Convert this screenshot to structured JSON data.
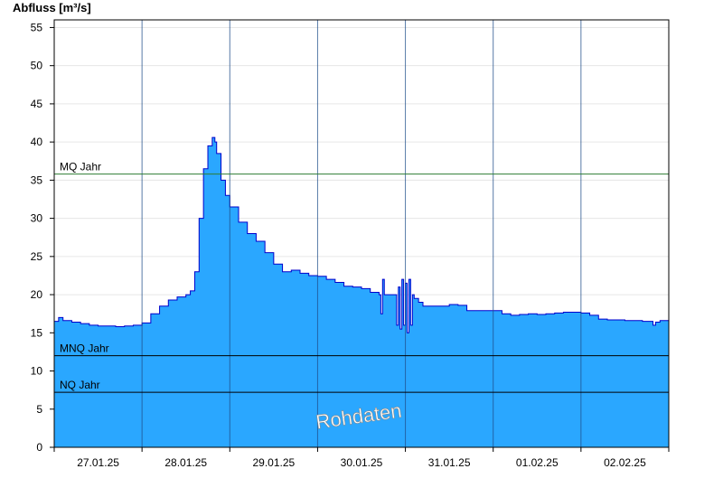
{
  "chart_data": {
    "type": "area",
    "ylabel": "Abfluss [m³/s]",
    "ylim": [
      0,
      56
    ],
    "yticks": [
      0,
      5,
      10,
      15,
      20,
      25,
      30,
      35,
      40,
      45,
      50,
      55
    ],
    "xlim": [
      0,
      7
    ],
    "x_unit": "days",
    "x_tick_labels": [
      "27.01.25",
      "28.01.25",
      "29.01.25",
      "30.01.25",
      "31.01.25",
      "01.02.25",
      "02.02.25"
    ],
    "watermark": "Rohdaten",
    "reference_lines": [
      {
        "label": "MQ Jahr",
        "value": 35.8,
        "color": "#2e7d32"
      },
      {
        "label": "MNQ Jahr",
        "value": 12.0,
        "color": "#000000"
      },
      {
        "label": "NQ Jahr",
        "value": 7.2,
        "color": "#000000"
      }
    ],
    "fill_color": "#2aa7ff",
    "line_color": "#0000cc",
    "series": [
      {
        "x": [
          0.0,
          0.05,
          0.1,
          0.2,
          0.3,
          0.4,
          0.5,
          0.6,
          0.7,
          0.8,
          0.9,
          1.0,
          1.1,
          1.2,
          1.3,
          1.4,
          1.45,
          1.5,
          1.55,
          1.6,
          1.65,
          1.7,
          1.75,
          1.8,
          1.83,
          1.85,
          1.9,
          1.95,
          2.0,
          2.1,
          2.2,
          2.3,
          2.4,
          2.5,
          2.6,
          2.7,
          2.8,
          2.9,
          3.0,
          3.1,
          3.2,
          3.3,
          3.4,
          3.5,
          3.6,
          3.7,
          3.72,
          3.74,
          3.76,
          3.8,
          3.88,
          3.9,
          3.92,
          3.94,
          3.96,
          3.98,
          4.0,
          4.02,
          4.04,
          4.06,
          4.08,
          4.1,
          4.15,
          4.2,
          4.3,
          4.4,
          4.5,
          4.6,
          4.7,
          4.8,
          4.9,
          5.0,
          5.1,
          5.2,
          5.3,
          5.4,
          5.5,
          5.6,
          5.7,
          5.8,
          5.9,
          6.0,
          6.1,
          6.2,
          6.3,
          6.4,
          6.5,
          6.6,
          6.7,
          6.8,
          6.82,
          6.85,
          6.9,
          7.0
        ],
        "y": [
          16.5,
          17.0,
          16.6,
          16.4,
          16.2,
          16.0,
          15.9,
          15.9,
          15.8,
          15.9,
          16.0,
          16.3,
          17.5,
          18.5,
          19.3,
          19.7,
          19.7,
          20.0,
          20.5,
          23.0,
          30.0,
          36.5,
          39.5,
          40.6,
          40.0,
          38.5,
          35.0,
          33.0,
          31.5,
          29.5,
          28.0,
          27.0,
          25.5,
          24.0,
          23.0,
          23.2,
          22.8,
          22.5,
          22.4,
          22.0,
          21.6,
          21.1,
          21.0,
          20.8,
          20.3,
          20.0,
          17.5,
          22.0,
          20.0,
          20.0,
          20.0,
          16.0,
          21.0,
          15.5,
          22.0,
          16.0,
          21.5,
          15.0,
          22.0,
          16.0,
          20.0,
          19.5,
          19.0,
          18.5,
          18.5,
          18.5,
          18.7,
          18.6,
          17.9,
          17.9,
          17.9,
          17.9,
          17.5,
          17.3,
          17.4,
          17.5,
          17.4,
          17.5,
          17.6,
          17.7,
          17.7,
          17.6,
          17.3,
          16.8,
          16.7,
          16.7,
          16.6,
          16.6,
          16.5,
          16.5,
          16.0,
          16.4,
          16.6,
          16.6
        ]
      }
    ]
  }
}
